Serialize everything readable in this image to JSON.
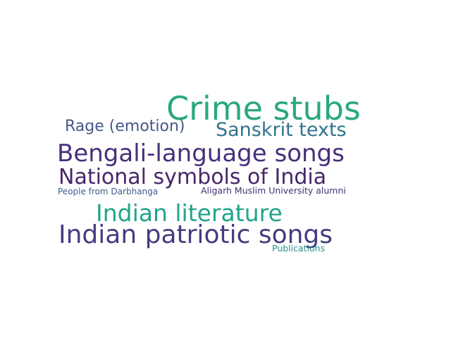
{
  "words": [
    {
      "text": "Crime stubs",
      "color": "#2aa880"
    },
    {
      "text": "Rage (emotion)",
      "color": "#46578a"
    },
    {
      "text": "Sanskrit texts",
      "color": "#31738d"
    },
    {
      "text": "Bengali-language songs",
      "color": "#472f7a"
    },
    {
      "text": "National symbols of India",
      "color": "#482668"
    },
    {
      "text": "People from Darbhanga",
      "color": "#3c5f8c"
    },
    {
      "text": "Aligarh Muslim University alumni",
      "color": "#452e73"
    },
    {
      "text": "Indian literature",
      "color": "#22a58a"
    },
    {
      "text": "Indian patriotic songs",
      "color": "#433d80"
    },
    {
      "text": "Publications",
      "color": "#2b8f8c"
    }
  ]
}
